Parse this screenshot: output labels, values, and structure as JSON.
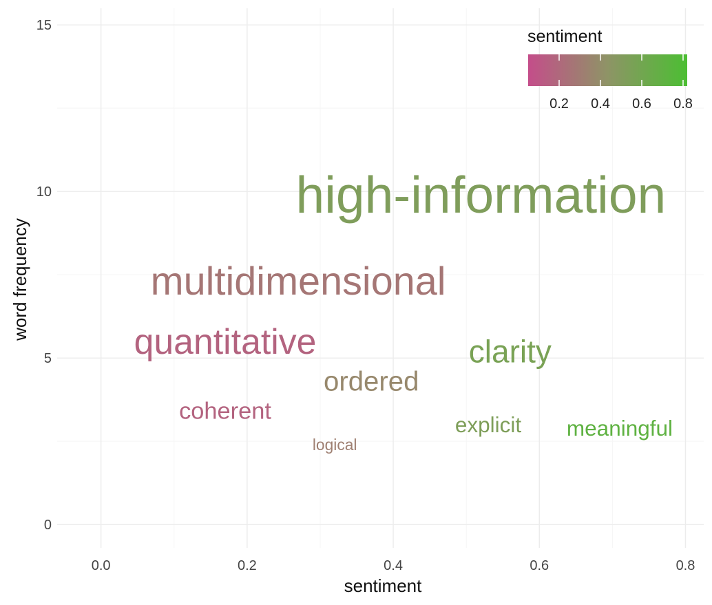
{
  "chart_data": {
    "type": "scatter",
    "subtype": "word-cloud-scatter",
    "xlabel": "sentiment",
    "ylabel": "word frequency",
    "xlim": [
      -0.06,
      0.825
    ],
    "ylim": [
      -0.7,
      15.5
    ],
    "xticks": [
      0.0,
      0.2,
      0.4,
      0.6,
      0.8
    ],
    "xtick_labels": [
      "0.0",
      "0.2",
      "0.4",
      "0.6",
      "0.8"
    ],
    "yticks": [
      0,
      5,
      10,
      15
    ],
    "ytick_labels": [
      "0",
      "5",
      "10",
      "15"
    ],
    "grid": true,
    "legend": {
      "title": "sentiment",
      "placement": "top-right",
      "type": "colorbar",
      "range": [
        0.05,
        0.82
      ],
      "ticks": [
        0.2,
        0.4,
        0.6,
        0.8
      ],
      "tick_labels": [
        "0.2",
        "0.4",
        "0.6",
        "0.8"
      ],
      "color_low": "#c44d8a",
      "color_mid": "#8e9466",
      "color_high": "#4cbe33"
    },
    "points": [
      {
        "word": "high-information",
        "x": 0.52,
        "y": 9.9,
        "size": 10
      },
      {
        "word": "multidimensional",
        "x": 0.27,
        "y": 7.3,
        "size": 7
      },
      {
        "word": "quantitative",
        "x": 0.17,
        "y": 5.5,
        "size": 6
      },
      {
        "word": "clarity",
        "x": 0.56,
        "y": 5.2,
        "size": 5
      },
      {
        "word": "ordered",
        "x": 0.37,
        "y": 4.3,
        "size": 4
      },
      {
        "word": "coherent",
        "x": 0.17,
        "y": 3.4,
        "size": 3
      },
      {
        "word": "explicit",
        "x": 0.53,
        "y": 3.0,
        "size": 2.5
      },
      {
        "word": "meaningful",
        "x": 0.71,
        "y": 2.9,
        "size": 2.5
      },
      {
        "word": "logical",
        "x": 0.32,
        "y": 2.4,
        "size": 1
      }
    ]
  }
}
